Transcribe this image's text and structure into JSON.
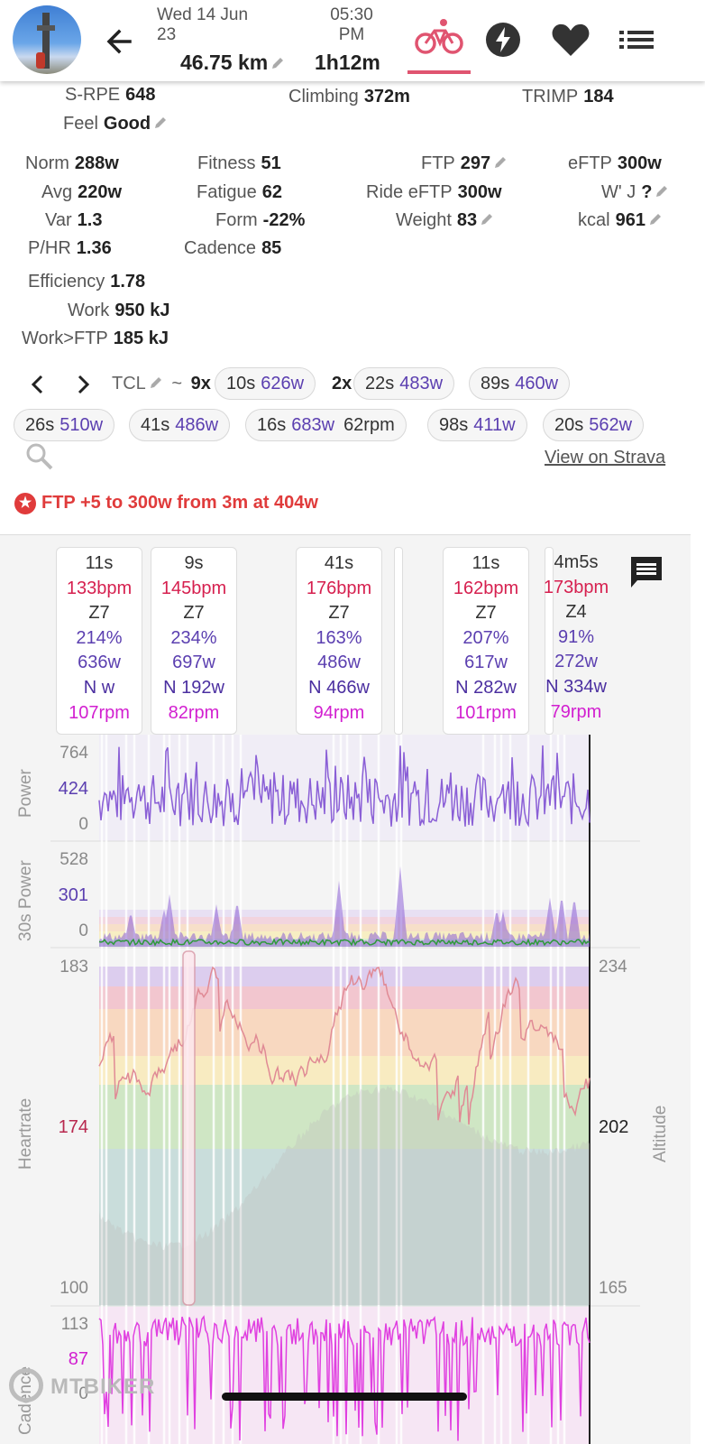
{
  "header": {
    "date_line1": "Wed 14 Jun",
    "date_line2": "23",
    "distance": "46.75 km",
    "time_line1": "05:30",
    "time_line2": "PM",
    "duration": "1h12m"
  },
  "summary": {
    "srpe_label": "S-RPE",
    "srpe_value": "648",
    "climbing_label": "Climbing",
    "climbing_value": "372m",
    "trimp_label": "TRIMP",
    "trimp_value": "184",
    "feel_label": "Feel",
    "feel_value": "Good"
  },
  "stats": {
    "norm_label": "Norm",
    "norm_value": "288w",
    "avg_label": "Avg",
    "avg_value": "220w",
    "var_label": "Var",
    "var_value": "1.3",
    "phr_label": "P/HR",
    "phr_value": "1.36",
    "fitness_label": "Fitness",
    "fitness_value": "51",
    "fatigue_label": "Fatigue",
    "fatigue_value": "62",
    "form_label": "Form",
    "form_value": "-22%",
    "cadence_label": "Cadence",
    "cadence_value": "85",
    "ftp_label": "FTP",
    "ftp_value": "297",
    "ride_eftp_label": "Ride eFTP",
    "ride_eftp_value": "300w",
    "weight_label": "Weight",
    "weight_value": "83",
    "eftp_label": "eFTP",
    "eftp_value": "300w",
    "wj_label": "W' J",
    "wj_value": "?",
    "kcal_label": "kcal",
    "kcal_value": "961",
    "efficiency_label": "Efficiency",
    "efficiency_value": "1.78",
    "work_label": "Work",
    "work_value": "950 kJ",
    "work_ftp_label": "Work>FTP",
    "work_ftp_value": "185 kJ"
  },
  "intervals": {
    "tcl_label": "TCL",
    "tilde": "~",
    "group1_count": "9x",
    "group2_count": "2x",
    "chips": [
      {
        "dur": "10s",
        "watts": "626w",
        "extra": ""
      },
      {
        "dur": "22s",
        "watts": "483w",
        "extra": ""
      },
      {
        "dur": "89s",
        "watts": "460w",
        "extra": ""
      },
      {
        "dur": "26s",
        "watts": "510w",
        "extra": ""
      },
      {
        "dur": "41s",
        "watts": "486w",
        "extra": ""
      },
      {
        "dur": "16s",
        "watts": "683w",
        "extra": "62rpm"
      },
      {
        "dur": "98s",
        "watts": "411w",
        "extra": ""
      },
      {
        "dur": "20s",
        "watts": "562w",
        "extra": ""
      }
    ],
    "strava_link": "View on Strava",
    "ftp_note": "FTP +5 to 300w from 3m at 404w"
  },
  "cards": [
    {
      "dur": "11s",
      "hr": "133bpm",
      "zone": "Z7",
      "pct": "214%",
      "watts": "636w",
      "np": "N w",
      "rpm": "107rpm"
    },
    {
      "dur": "9s",
      "hr": "145bpm",
      "zone": "Z7",
      "pct": "234%",
      "watts": "697w",
      "np": "N 192w",
      "rpm": "82rpm"
    },
    {
      "dur": "41s",
      "hr": "176bpm",
      "zone": "Z7",
      "pct": "163%",
      "watts": "486w",
      "np": "N 466w",
      "rpm": "94rpm"
    },
    {
      "dur": "11s",
      "hr": "162bpm",
      "zone": "Z7",
      "pct": "207%",
      "watts": "617w",
      "np": "N 282w",
      "rpm": "101rpm"
    },
    {
      "dur": "4m5s",
      "hr": "173bpm",
      "zone": "Z4",
      "pct": "91%",
      "watts": "272w",
      "np": "N 334w",
      "rpm": "79rpm"
    }
  ],
  "chart_data": [
    {
      "type": "line",
      "ylabel": "Power",
      "ylim": [
        0,
        764
      ],
      "yticks": [
        "764",
        "424",
        "0"
      ],
      "color": "#8a5fd6"
    },
    {
      "type": "area",
      "ylabel": "30s Power",
      "ylim": [
        0,
        528
      ],
      "yticks": [
        "528",
        "301",
        "0"
      ],
      "color": "#6a3fc0"
    },
    {
      "type": "line",
      "ylabel": "Heartrate",
      "ylim": [
        100,
        183
      ],
      "yticks": [
        "183",
        "174",
        "100"
      ],
      "color": "#e07a8a",
      "y2label": "Altitude",
      "y2lim": [
        165,
        234
      ],
      "y2ticks": [
        "234",
        "202",
        "165"
      ]
    },
    {
      "type": "line",
      "ylabel": "Cadence",
      "ylim": [
        0,
        113
      ],
      "yticks": [
        "113",
        "87",
        "0"
      ],
      "color": "#e040e0"
    }
  ],
  "watermark": "MTBIKER",
  "colors": {
    "accent": "#e05470",
    "power": "#5b3fb0",
    "hr": "#d6204f",
    "cadence": "#d21fd0",
    "note": "#e03b3b"
  }
}
